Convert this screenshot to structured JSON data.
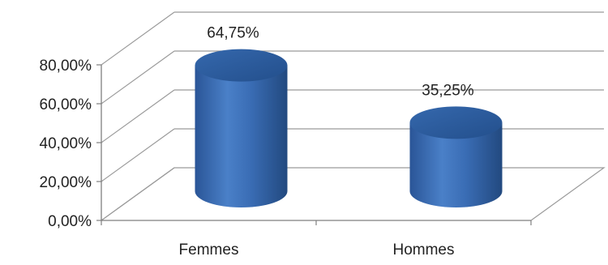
{
  "chart_data": {
    "type": "bar",
    "style": "3d-cylinder",
    "title": "",
    "xlabel": "",
    "ylabel": "",
    "categories": [
      "Femmes",
      "Hommes"
    ],
    "values": [
      64.75,
      35.25
    ],
    "data_labels": [
      "64,75%",
      "35,25%"
    ],
    "yticks": [
      0,
      20,
      40,
      60,
      80
    ],
    "ytick_labels": [
      "0,00%",
      "20,00%",
      "40,00%",
      "60,00%",
      "80,00%"
    ],
    "ylim": [
      0,
      80
    ],
    "grid": true,
    "legend": "none",
    "colors": {
      "bar": "#3a6db5",
      "bar_top": "#2c5a99",
      "grid": "#9a9a9a",
      "axis": "#7f7f7f"
    }
  }
}
